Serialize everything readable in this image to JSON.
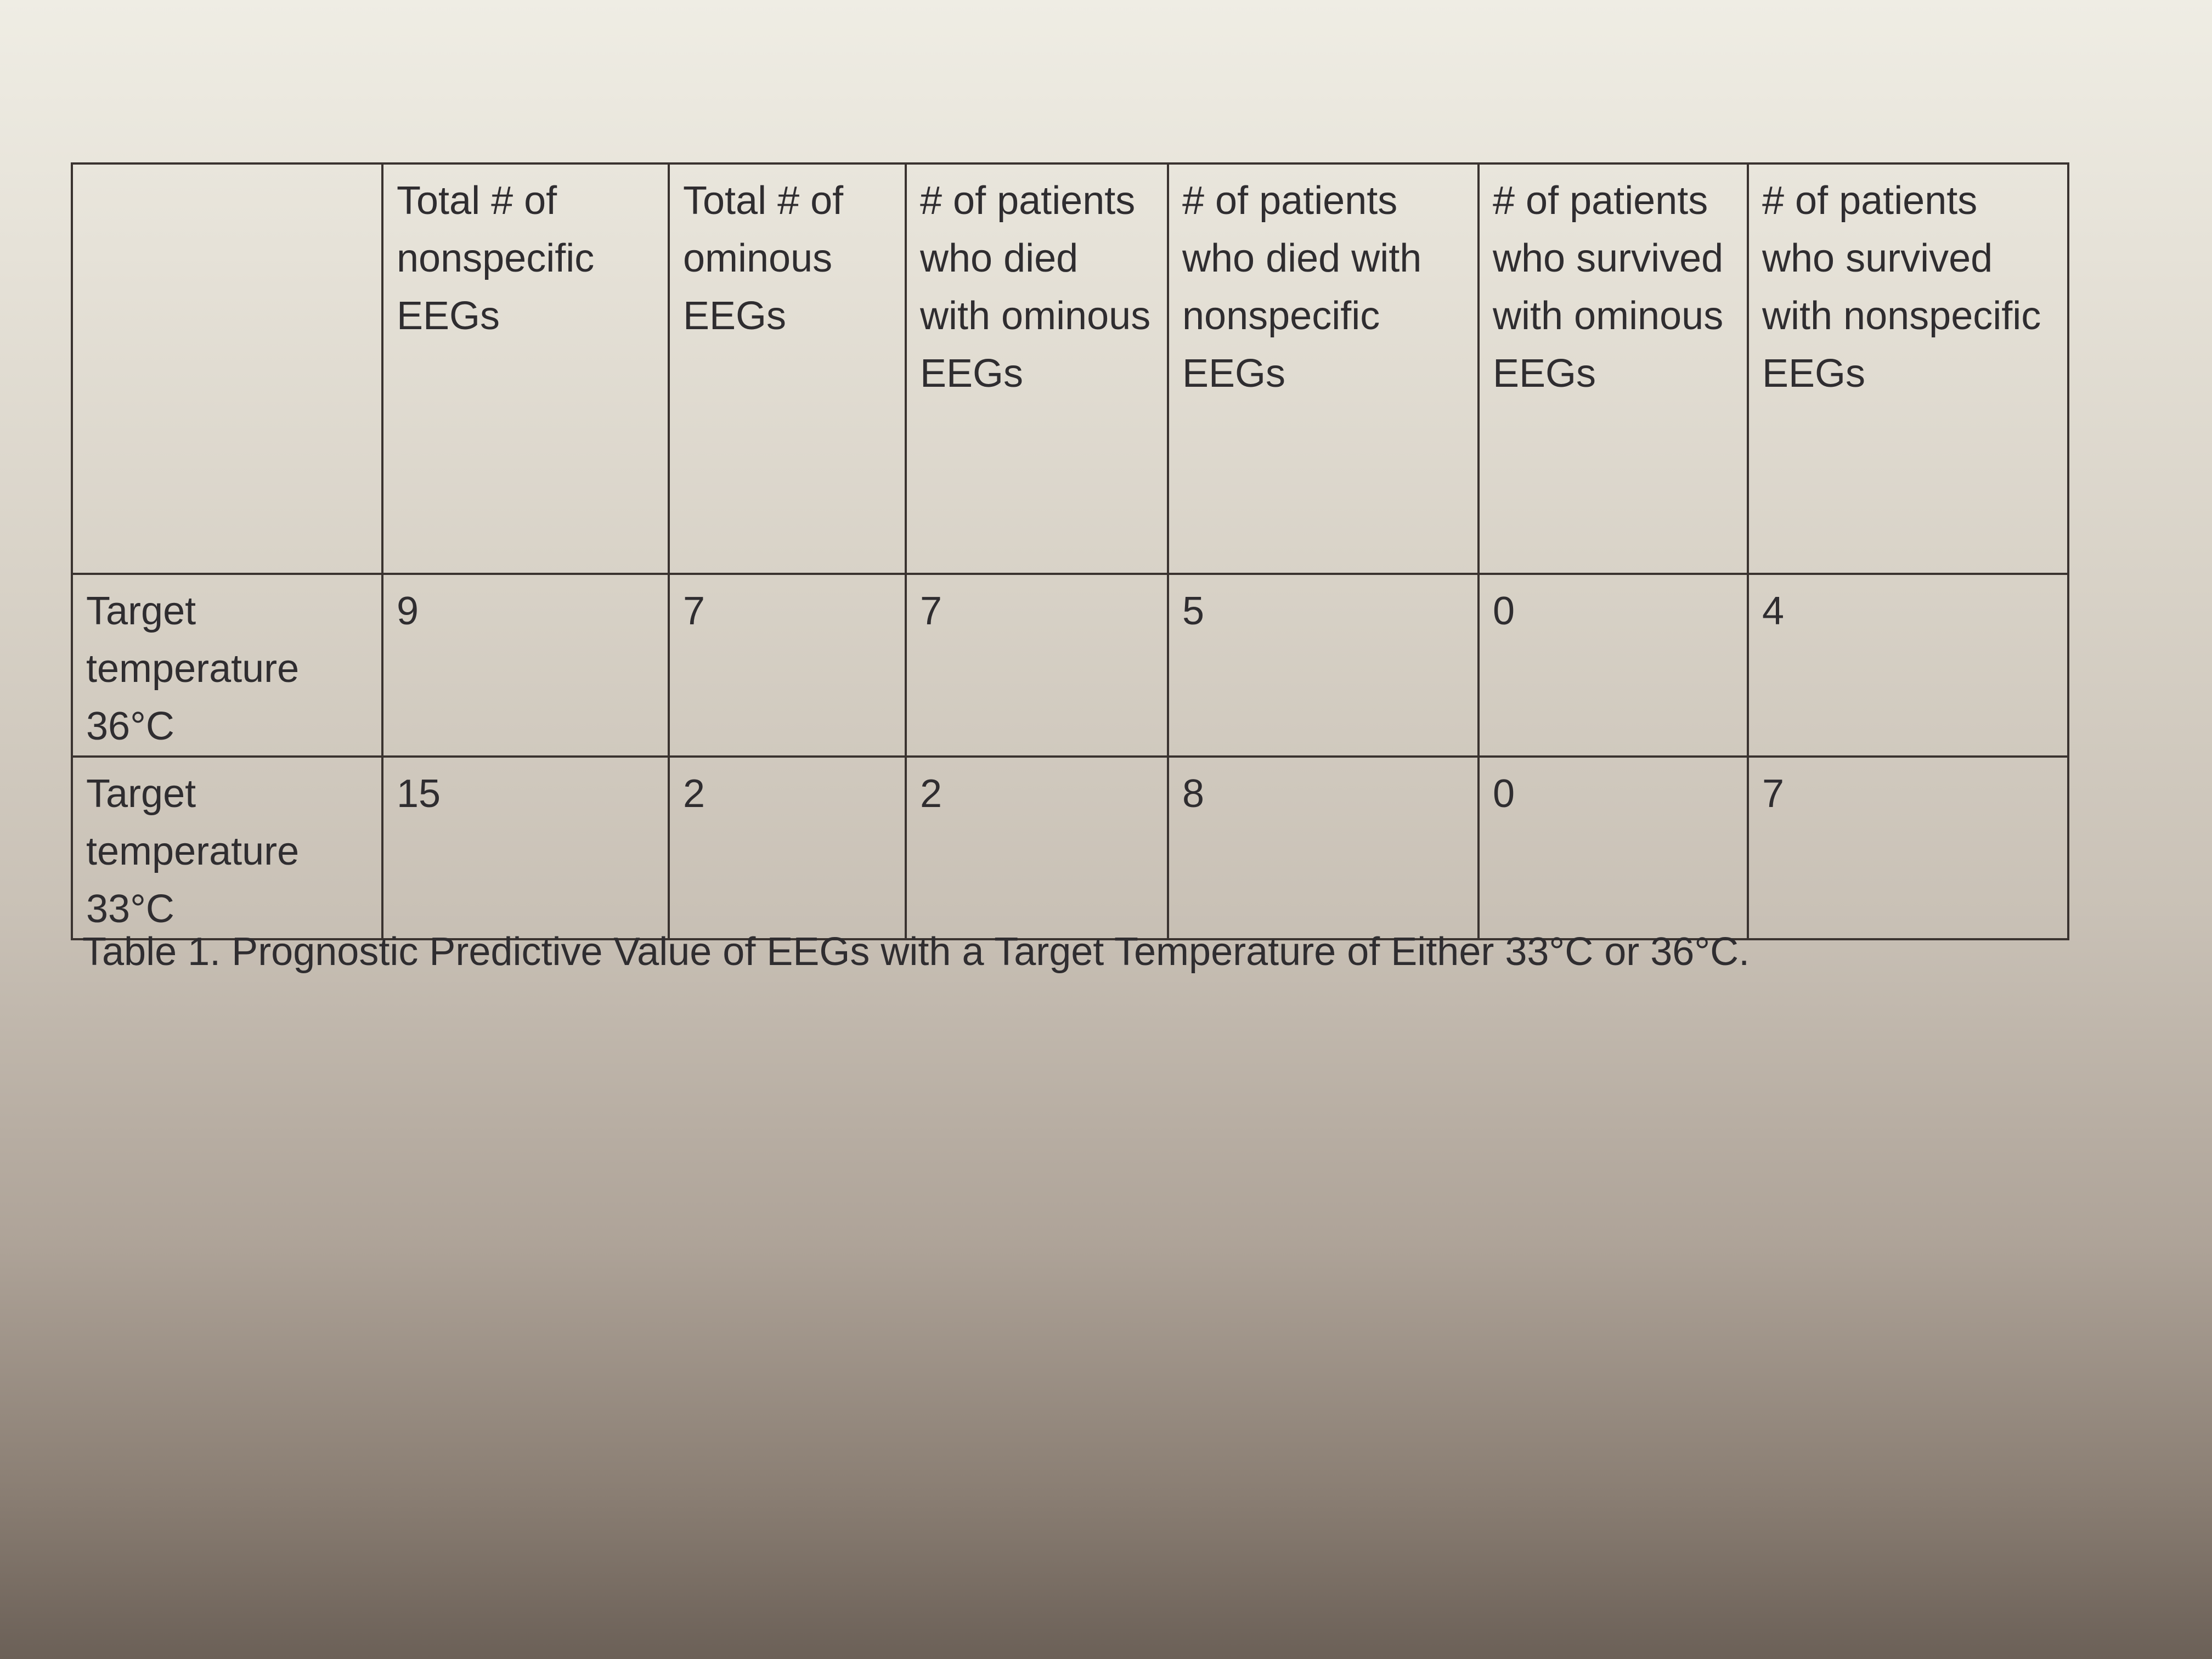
{
  "table": {
    "headers": [
      "",
      "Total # of nonspecific EEGs",
      "Total # of ominous EEGs",
      "# of patients who died with ominous EEGs",
      "# of patients who died with nonspecific EEGs",
      "# of patients who survived with ominous EEGs",
      "# of patients who survived with nonspecific EEGs"
    ],
    "rows": [
      {
        "label": "Target temperature 36°C",
        "values": [
          "9",
          "7",
          "7",
          "5",
          "0",
          "4"
        ]
      },
      {
        "label": "Target temperature 33°C",
        "values": [
          "15",
          "2",
          "2",
          "8",
          "0",
          "7"
        ]
      }
    ]
  },
  "caption": "Table 1. Prognostic Predictive Value of EEGs with a Target Temperature of Either 33°C or 36°C."
}
